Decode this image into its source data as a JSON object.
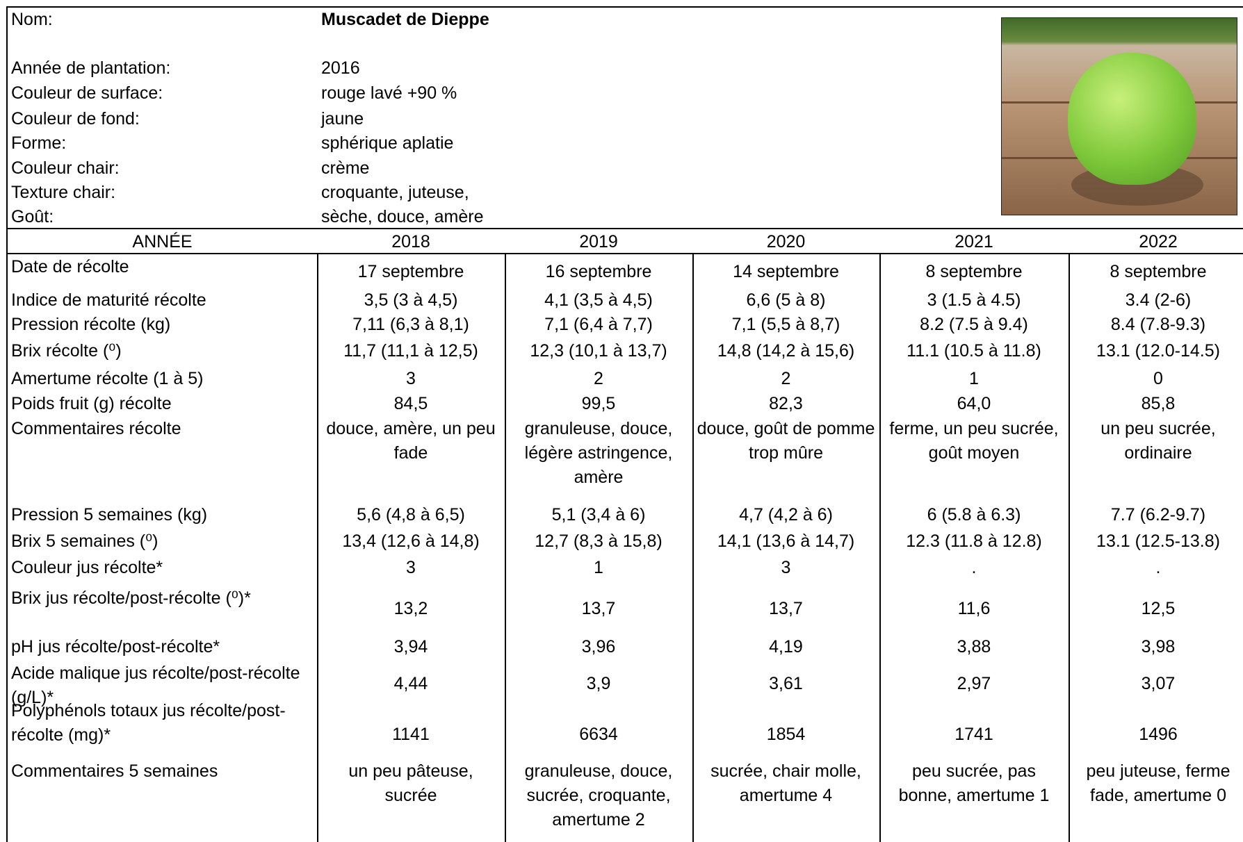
{
  "header": {
    "fields": [
      {
        "label": "Nom:",
        "value": "Muscadet de Dieppe"
      },
      {
        "label": "Année de plantation:",
        "value": "2016"
      },
      {
        "label": "Couleur de surface:",
        "value": "rouge lavé +90 %"
      },
      {
        "label": "Couleur de fond:",
        "value": "jaune"
      },
      {
        "label": "Forme:",
        "value": "sphérique aplatie"
      },
      {
        "label": "Couleur chair:",
        "value": "crème"
      },
      {
        "label": "Texture chair:",
        "value": "croquante, juteuse,"
      },
      {
        "label": "Goût:",
        "value": "sèche, douce, amère"
      }
    ]
  },
  "table": {
    "headers": [
      "ANNÉE",
      "2018",
      "2019",
      "2020",
      "2021",
      "2022"
    ],
    "rows": [
      [
        "Date de récolte",
        "17 septembre",
        "16 septembre",
        "14 septembre",
        "8 septembre",
        "8 septembre"
      ],
      [
        "Indice de maturité récolte",
        "3,5 (3 à 4,5)",
        "4,1 (3,5 à 4,5)",
        "6,6 (5 à 8)",
        "3 (1.5 à 4.5)",
        "3.4 (2-6)"
      ],
      [
        "Pression récolte (kg)",
        "7,11 (6,3 à 8,1)",
        "7,1 (6,4 à 7,7)",
        "7,1 (5,5 à 8,7)",
        "8.2 (7.5 à 9.4)",
        "8.4 (7.8-9.3)"
      ],
      [
        "Brix récolte (⁰)",
        "11,7 (11,1 à 12,5)",
        "12,3 (10,1 à 13,7)",
        "14,8 (14,2 à 15,6)",
        "11.1 (10.5 à 11.8)",
        "13.1 (12.0-14.5)"
      ],
      [
        "Amertume récolte  (1 à 5)",
        "3",
        "2",
        "2",
        "1",
        "0"
      ],
      [
        "Poids fruit (g) récolte",
        "84,5",
        "99,5",
        "82,3",
        "64,0",
        "85,8"
      ],
      [
        "Commentaires récolte",
        "douce, amère, un peu fade",
        "granuleuse, douce, légère astringence, amère",
        "douce, goût de pomme trop mûre",
        "ferme, un peu sucrée, goût moyen",
        "un peu sucrée, ordinaire"
      ],
      [
        "Pression 5 semaines (kg)",
        "5,6 (4,8 à 6,5)",
        "5,1 (3,4 à 6)",
        "4,7 (4,2 à 6)",
        "6 (5.8 à 6.3)",
        "7.7 (6.2-9.7)"
      ],
      [
        "Brix 5 semaines (⁰)",
        "13,4 (12,6 à 14,8)",
        "12,7 (8,3 à 15,8)",
        "14,1 (13,6 à 14,7)",
        "12.3 (11.8 à 12.8)",
        "13.1 (12.5-13.8)"
      ],
      [
        "Couleur jus récolte*",
        "3",
        "1",
        "3",
        ".",
        "."
      ],
      [
        "Brix jus récolte/post-récolte (⁰)*",
        "13,2",
        "13,7",
        "13,7",
        "11,6",
        "12,5"
      ],
      [
        "pH jus récolte/post-récolte*",
        "3,94",
        "3,96",
        "4,19",
        "3,88",
        "3,98"
      ],
      [
        "Acide malique jus récolte/post-récolte (g/L)*",
        "4,44",
        "3,9",
        "3,61",
        "2,97",
        "3,07"
      ],
      [
        "Polyphénols totaux jus récolte/post-récolte (mg)*",
        "1141",
        "6634",
        "1854",
        "1741",
        "1496"
      ],
      [
        "Commentaires 5 semaines",
        "un peu pâteuse, sucrée",
        "granuleuse, douce, sucrée, croquante, amertume 2",
        "sucrée, chair molle, amertume 4",
        "peu sucrée, pas bonne, amertume 1",
        "peu juteuse, ferme fade, amertume 0"
      ]
    ]
  }
}
